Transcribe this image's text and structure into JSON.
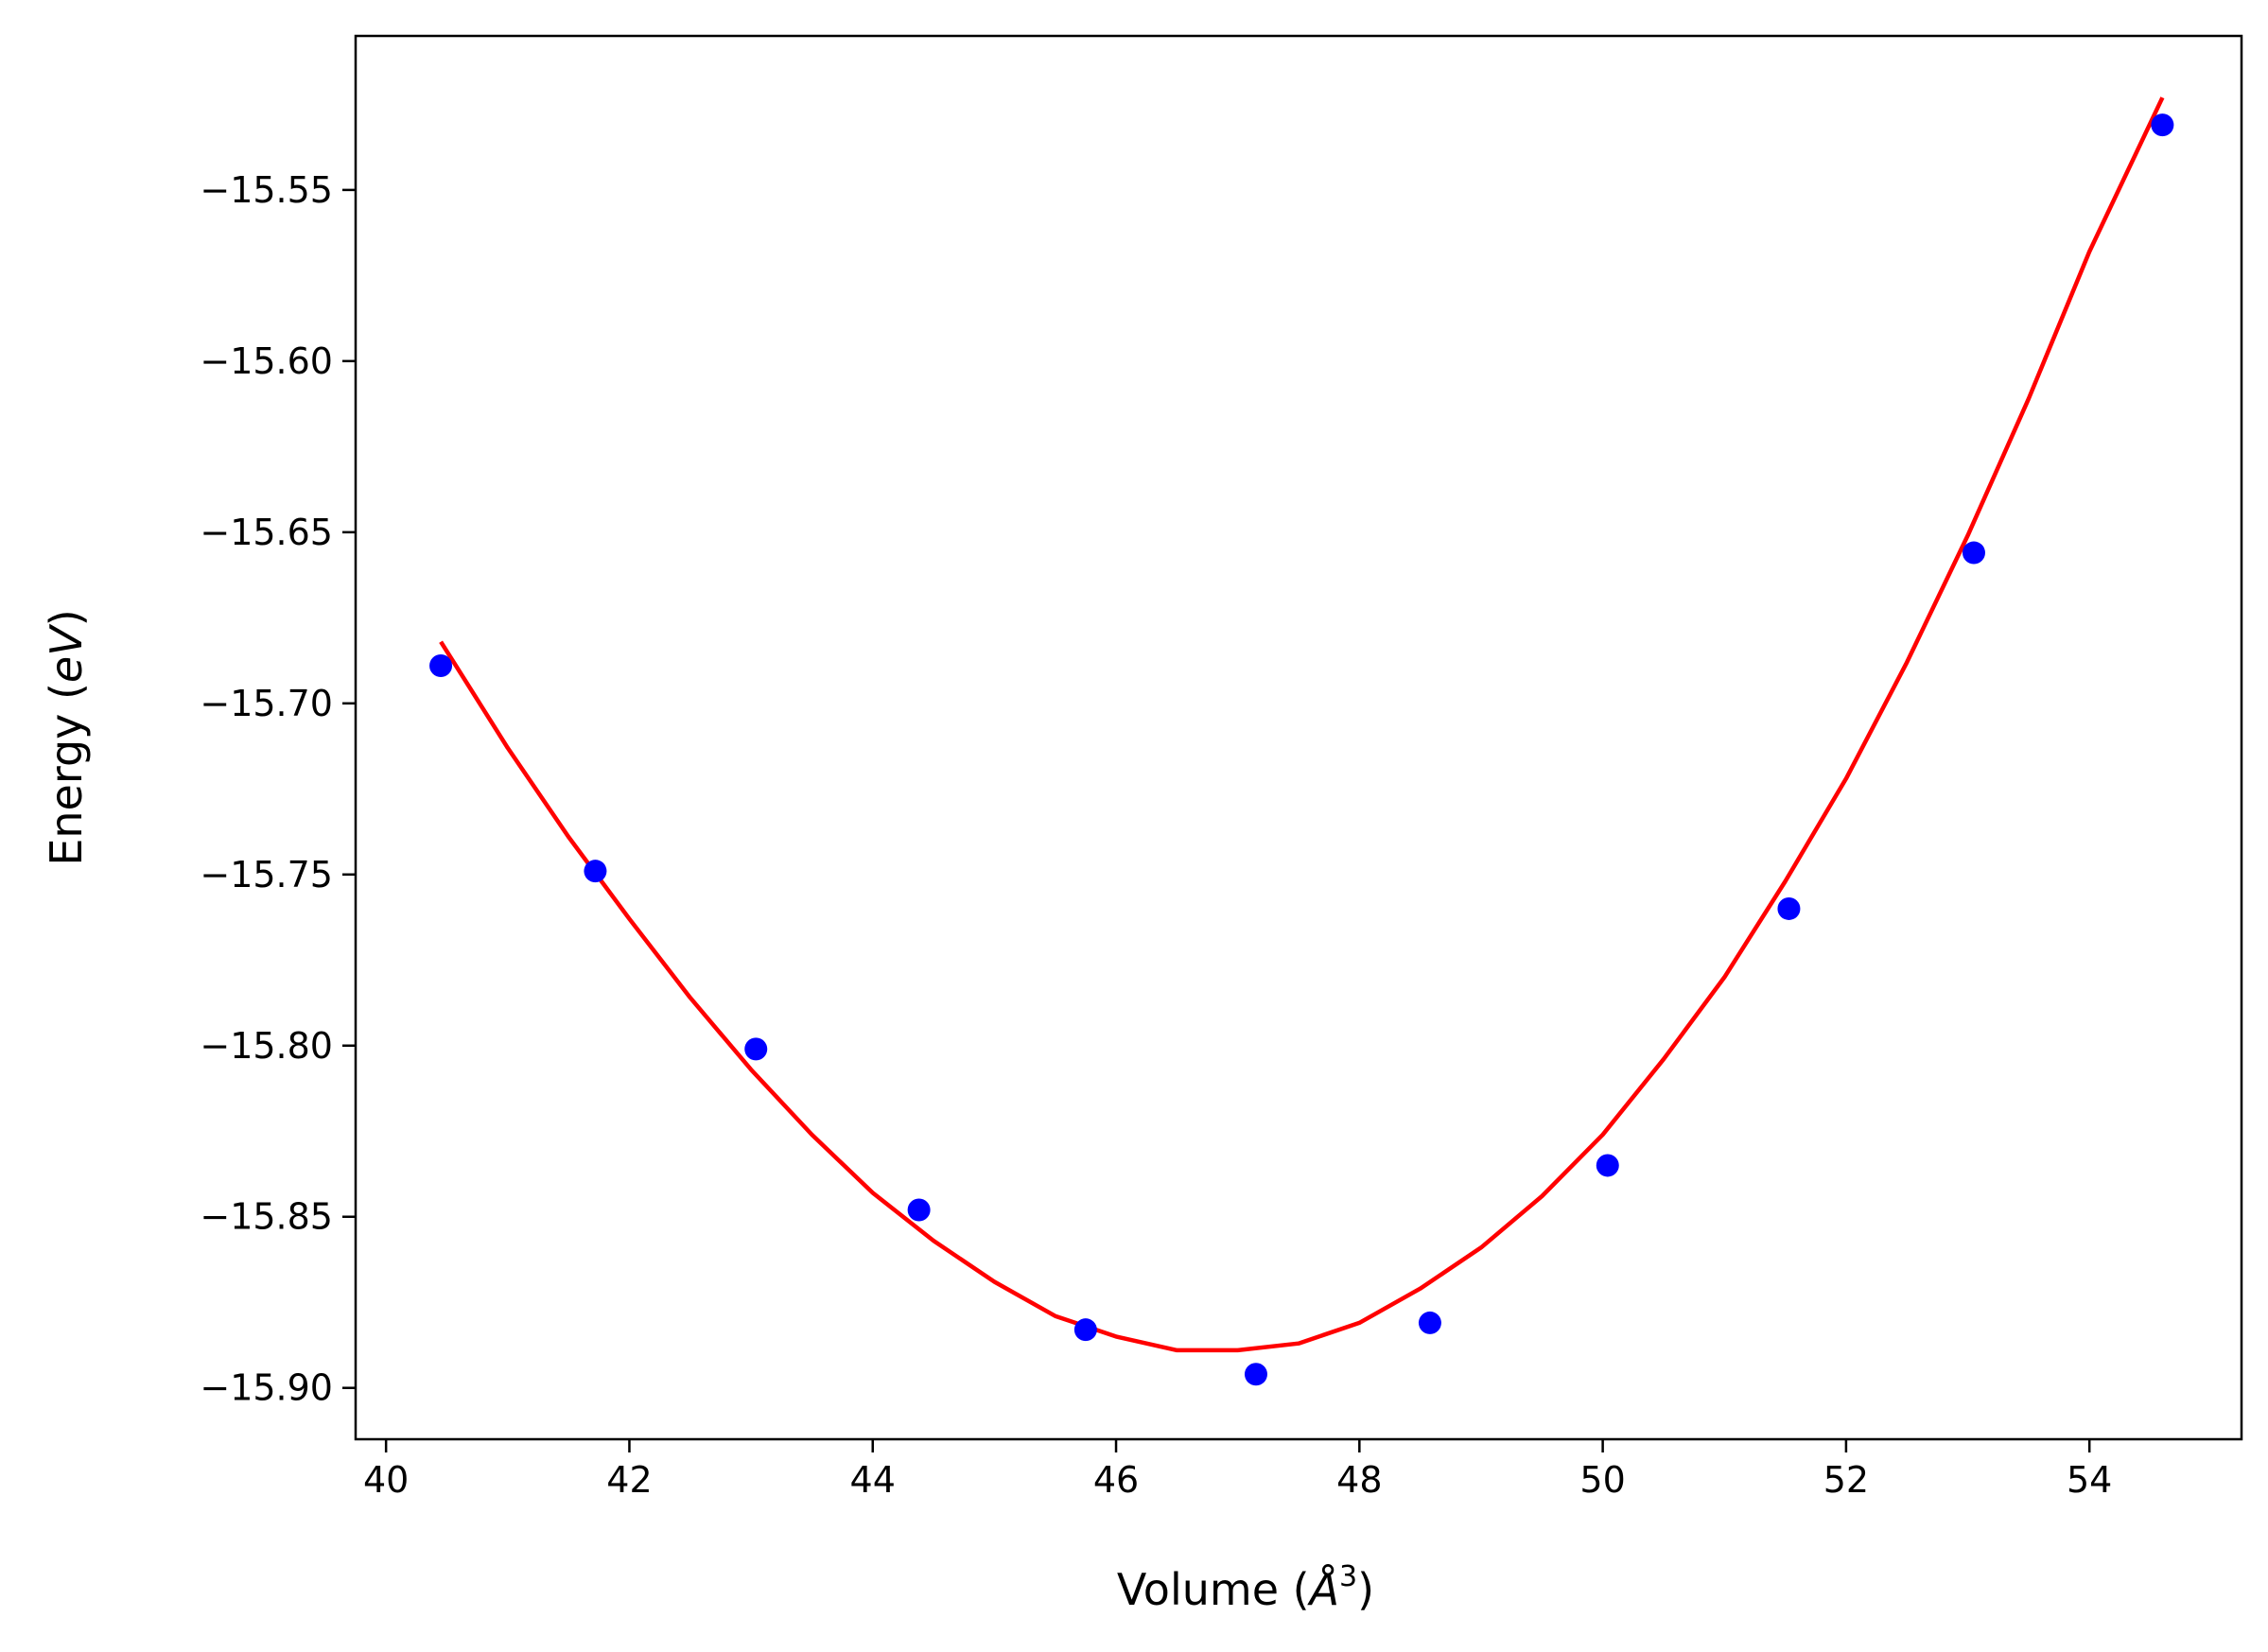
{
  "chart_data": {
    "type": "scatter",
    "xlabel": {
      "prefix": "Volume (",
      "unit": "Å",
      "exponent": "3",
      "suffix": ")"
    },
    "ylabel": {
      "prefix": "Energy (",
      "unit": "eV",
      "suffix": ")"
    },
    "xlim": [
      39.75,
      55.25
    ],
    "ylim": [
      -15.915,
      -15.505
    ],
    "x_ticks": [
      40,
      42,
      44,
      46,
      48,
      50,
      52,
      54
    ],
    "x_tick_labels": [
      "40",
      "42",
      "44",
      "46",
      "48",
      "50",
      "52",
      "54"
    ],
    "y_ticks": [
      -15.55,
      -15.6,
      -15.65,
      -15.7,
      -15.75,
      -15.8,
      -15.85,
      -15.9
    ],
    "y_tick_labels": [
      "−15.55",
      "−15.60",
      "−15.65",
      "−15.70",
      "−15.75",
      "−15.80",
      "−15.85",
      "−15.90"
    ],
    "grid": false,
    "series": [
      {
        "kind": "points",
        "color": "#0000ff",
        "x": [
          40.45,
          41.72,
          43.04,
          44.38,
          45.75,
          47.15,
          48.58,
          50.04,
          51.53,
          53.05,
          54.6
        ],
        "y": [
          -15.689,
          -15.749,
          -15.801,
          -15.848,
          -15.883,
          -15.896,
          -15.881,
          -15.835,
          -15.76,
          -15.656,
          -15.531
        ]
      },
      {
        "kind": "fit-curve",
        "color": "#ff0000",
        "x": [
          40.45,
          41.0,
          41.5,
          42.0,
          42.5,
          43.0,
          43.5,
          44.0,
          44.5,
          45.0,
          45.5,
          46.0,
          46.5,
          47.0,
          47.5,
          48.0,
          48.5,
          49.0,
          49.5,
          50.0,
          50.5,
          51.0,
          51.5,
          52.0,
          52.5,
          53.0,
          53.5,
          54.0,
          54.6
        ],
        "y": [
          -15.682,
          -15.713,
          -15.739,
          -15.763,
          -15.786,
          -15.807,
          -15.826,
          -15.843,
          -15.857,
          -15.869,
          -15.879,
          -15.885,
          -15.889,
          -15.889,
          -15.887,
          -15.881,
          -15.871,
          -15.859,
          -15.844,
          -15.826,
          -15.804,
          -15.78,
          -15.752,
          -15.722,
          -15.688,
          -15.651,
          -15.611,
          -15.568,
          -15.523
        ]
      }
    ]
  }
}
